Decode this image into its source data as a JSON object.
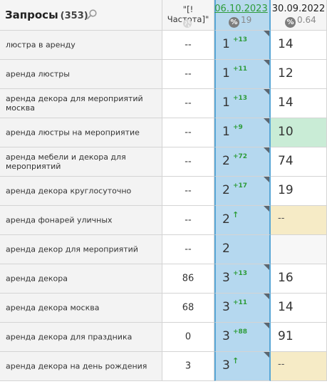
{
  "header": {
    "title": "Запросы",
    "count": "(353)",
    "frequency_label": "\"[!Частота]\"",
    "date1": "06.10.2023",
    "date1_pct_symbol": "%",
    "date1_pct_value": "19",
    "date2": "30.09.2022",
    "date2_pct_symbol": "%",
    "date2_pct_value": "0.64"
  },
  "colors": {
    "active_column": "#b5d8ef",
    "active_border": "#5aa7d6",
    "positive_delta": "#2e9c3a",
    "top10_highlight": "#c9ecd6",
    "no_result_highlight": "#f6ebc6"
  },
  "rows": [
    {
      "query": "люстра в аренду",
      "freq": "--",
      "pos": "1",
      "delta": "+13",
      "prev": "14",
      "prev_state": "normal"
    },
    {
      "query": "аренда люстры",
      "freq": "--",
      "pos": "1",
      "delta": "+11",
      "prev": "12",
      "prev_state": "normal"
    },
    {
      "query": "аренда декора для мероприятий москва",
      "freq": "--",
      "pos": "1",
      "delta": "+13",
      "prev": "14",
      "prev_state": "normal"
    },
    {
      "query": "аренда люстры на мероприятие",
      "freq": "--",
      "pos": "1",
      "delta": "+9",
      "prev": "10",
      "prev_state": "top10"
    },
    {
      "query": "аренда мебели и декора для мероприятий",
      "freq": "--",
      "pos": "2",
      "delta": "+72",
      "prev": "74",
      "prev_state": "normal"
    },
    {
      "query": "аренда декора круглосуточно",
      "freq": "--",
      "pos": "2",
      "delta": "+17",
      "prev": "19",
      "prev_state": "normal"
    },
    {
      "query": "аренда фонарей уличных",
      "freq": "--",
      "pos": "2",
      "delta": "↑",
      "prev": "--",
      "prev_state": "nores"
    },
    {
      "query": "аренда декор для мероприятий",
      "freq": "--",
      "pos": "2",
      "delta": "",
      "prev": "",
      "prev_state": "blank"
    },
    {
      "query": "аренда декора",
      "freq": "86",
      "pos": "3",
      "delta": "+13",
      "prev": "16",
      "prev_state": "normal"
    },
    {
      "query": "аренда декора москва",
      "freq": "68",
      "pos": "3",
      "delta": "+11",
      "prev": "14",
      "prev_state": "normal"
    },
    {
      "query": "аренда декора для праздника",
      "freq": "0",
      "pos": "3",
      "delta": "+88",
      "prev": "91",
      "prev_state": "normal"
    },
    {
      "query": "аренда декора на день рождения",
      "freq": "3",
      "pos": "3",
      "delta": "↑",
      "prev": "--",
      "prev_state": "nores"
    }
  ]
}
